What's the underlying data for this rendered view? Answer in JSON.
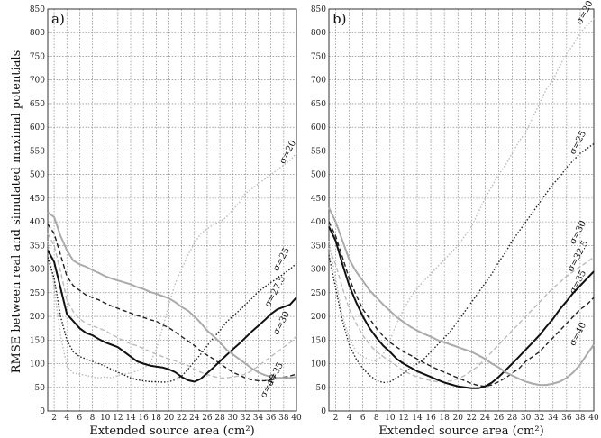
{
  "ylabel": "RMSE between real and simulated maximal potentials",
  "chart_data": [
    {
      "type": "line",
      "panel_label": "a)",
      "xlabel": "Extended source area (cm²)",
      "xlim": [
        1,
        40
      ],
      "ylim": [
        0,
        850
      ],
      "x_ticks": [
        2,
        4,
        6,
        8,
        10,
        12,
        14,
        16,
        18,
        20,
        22,
        24,
        26,
        28,
        30,
        32,
        34,
        36,
        38,
        40
      ],
      "y_ticks": [
        0,
        50,
        100,
        150,
        200,
        250,
        300,
        350,
        400,
        450,
        500,
        550,
        600,
        650,
        700,
        750,
        800,
        850
      ],
      "grid": true,
      "x": [
        1,
        2,
        3,
        4,
        5,
        6,
        7,
        8,
        9,
        10,
        11,
        12,
        13,
        14,
        15,
        16,
        17,
        18,
        19,
        20,
        21,
        22,
        23,
        24,
        25,
        26,
        27,
        28,
        29,
        30,
        31,
        32,
        33,
        34,
        35,
        36,
        37,
        38,
        39,
        40
      ],
      "series": [
        {
          "name": "σ=20",
          "color": "#bbbbbb",
          "dash": "1.5 2",
          "width": 1.4,
          "values": [
            360,
            260,
            160,
            95,
            80,
            78,
            75,
            72,
            70,
            72,
            70,
            75,
            78,
            80,
            85,
            90,
            100,
            130,
            175,
            225,
            270,
            300,
            330,
            355,
            375,
            385,
            395,
            400,
            410,
            425,
            440,
            460,
            470,
            480,
            490,
            500,
            510,
            520,
            530,
            545
          ]
        },
        {
          "name": "σ=25",
          "color": "#222222",
          "dash": "1.5 2",
          "width": 1.4,
          "values": [
            325,
            280,
            200,
            150,
            125,
            115,
            110,
            105,
            100,
            95,
            88,
            82,
            76,
            70,
            66,
            64,
            62,
            62,
            61,
            62,
            66,
            74,
            88,
            105,
            120,
            138,
            155,
            170,
            188,
            200,
            212,
            225,
            238,
            252,
            262,
            272,
            280,
            290,
            300,
            312
          ]
        },
        {
          "name": "σ=27.5",
          "color": "#222222",
          "dash": "5 3",
          "width": 1.4,
          "values": [
            395,
            375,
            330,
            285,
            265,
            255,
            245,
            240,
            235,
            228,
            222,
            217,
            212,
            207,
            202,
            198,
            193,
            190,
            182,
            176,
            167,
            157,
            148,
            138,
            127,
            118,
            110,
            100,
            91,
            82,
            76,
            70,
            66,
            64,
            64,
            66,
            68,
            71,
            74,
            78
          ]
        },
        {
          "name": "σ=30",
          "color": "#bbbbbb",
          "dash": "5 3",
          "width": 1.4,
          "values": [
            375,
            350,
            295,
            235,
            210,
            195,
            185,
            180,
            175,
            170,
            162,
            155,
            148,
            142,
            138,
            132,
            126,
            120,
            115,
            110,
            106,
            100,
            96,
            88,
            82,
            77,
            73,
            70,
            70,
            72,
            74,
            78,
            85,
            95,
            105,
            115,
            125,
            135,
            145,
            158
          ]
        },
        {
          "name": "σ=35",
          "color": "#111111",
          "dash": "",
          "width": 2.0,
          "values": [
            340,
            315,
            260,
            205,
            190,
            175,
            165,
            160,
            152,
            145,
            140,
            135,
            125,
            115,
            105,
            100,
            96,
            94,
            92,
            88,
            82,
            72,
            65,
            62,
            68,
            80,
            92,
            105,
            118,
            130,
            142,
            155,
            168,
            180,
            192,
            205,
            215,
            220,
            225,
            240
          ]
        },
        {
          "name": "σ=40",
          "color": "#aaaaaa",
          "dash": "",
          "width": 2.0,
          "values": [
            420,
            410,
            370,
            340,
            318,
            310,
            305,
            298,
            292,
            285,
            280,
            276,
            272,
            268,
            262,
            258,
            252,
            248,
            243,
            238,
            230,
            220,
            212,
            200,
            186,
            170,
            158,
            145,
            130,
            120,
            110,
            100,
            90,
            82,
            76,
            72,
            70,
            70,
            70,
            72
          ]
        }
      ],
      "curve_labels": [
        {
          "text": "σ=20",
          "at_x": 39,
          "at_y": 545
        },
        {
          "text": "σ=25",
          "at_x": 38,
          "at_y": 318
        },
        {
          "text": "σ=27.5",
          "at_x": 37,
          "at_y": 250
        },
        {
          "text": "σ=30",
          "at_x": 38,
          "at_y": 183
        },
        {
          "text": "σ=35",
          "at_x": 37,
          "at_y": 75
        },
        {
          "text": "σ=40",
          "at_x": 36,
          "at_y": 50
        }
      ]
    },
    {
      "type": "line",
      "panel_label": "b)",
      "xlabel": "Extended source area (cm²)",
      "xlim": [
        1,
        40
      ],
      "ylim": [
        0,
        850
      ],
      "x_ticks": [
        2,
        4,
        6,
        8,
        10,
        12,
        14,
        16,
        18,
        20,
        22,
        24,
        26,
        28,
        30,
        32,
        34,
        36,
        38,
        40
      ],
      "y_ticks": [
        0,
        50,
        100,
        150,
        200,
        250,
        300,
        350,
        400,
        450,
        500,
        550,
        600,
        650,
        700,
        750,
        800,
        850
      ],
      "grid": true,
      "x": [
        1,
        2,
        3,
        4,
        5,
        6,
        7,
        8,
        9,
        10,
        11,
        12,
        13,
        14,
        15,
        16,
        17,
        18,
        19,
        20,
        21,
        22,
        23,
        24,
        25,
        26,
        27,
        28,
        29,
        30,
        31,
        32,
        33,
        34,
        35,
        36,
        37,
        38,
        39,
        40
      ],
      "series": [
        {
          "name": "σ=20",
          "color": "#bbbbbb",
          "dash": "1.5 2",
          "width": 1.4,
          "values": [
            360,
            280,
            200,
            155,
            125,
            115,
            108,
            105,
            120,
            150,
            185,
            215,
            240,
            260,
            275,
            290,
            305,
            320,
            335,
            350,
            370,
            390,
            420,
            450,
            475,
            500,
            520,
            545,
            570,
            590,
            620,
            650,
            680,
            700,
            730,
            755,
            775,
            800,
            815,
            830
          ]
        },
        {
          "name": "σ=25",
          "color": "#222222",
          "dash": "1.5 2",
          "width": 1.4,
          "values": [
            330,
            260,
            190,
            140,
            110,
            90,
            75,
            65,
            60,
            62,
            70,
            80,
            90,
            100,
            110,
            125,
            140,
            155,
            170,
            190,
            210,
            230,
            250,
            270,
            290,
            315,
            335,
            360,
            380,
            400,
            420,
            440,
            460,
            480,
            495,
            515,
            530,
            545,
            555,
            565
          ]
        },
        {
          "name": "σ=30",
          "color": "#bbbbbb",
          "dash": "5 3",
          "width": 1.4,
          "values": [
            345,
            310,
            260,
            215,
            185,
            160,
            140,
            125,
            115,
            105,
            95,
            85,
            78,
            72,
            68,
            64,
            62,
            62,
            64,
            68,
            75,
            85,
            95,
            110,
            125,
            140,
            155,
            170,
            185,
            200,
            215,
            230,
            245,
            260,
            272,
            285,
            295,
            305,
            315,
            325
          ]
        },
        {
          "name": "σ=32.5",
          "color": "#222222",
          "dash": "5 3",
          "width": 1.4,
          "values": [
            400,
            370,
            325,
            280,
            245,
            215,
            195,
            175,
            158,
            145,
            135,
            125,
            118,
            110,
            102,
            95,
            88,
            82,
            76,
            70,
            64,
            58,
            54,
            52,
            55,
            62,
            70,
            80,
            90,
            105,
            115,
            125,
            140,
            155,
            170,
            185,
            200,
            215,
            225,
            240
          ]
        },
        {
          "name": "σ=35",
          "color": "#111111",
          "dash": "",
          "width": 2.0,
          "values": [
            390,
            360,
            310,
            265,
            230,
            200,
            175,
            155,
            138,
            125,
            110,
            100,
            92,
            84,
            78,
            72,
            66,
            60,
            56,
            52,
            50,
            48,
            48,
            52,
            60,
            72,
            86,
            100,
            115,
            130,
            145,
            160,
            178,
            195,
            215,
            232,
            250,
            265,
            280,
            295
          ]
        },
        {
          "name": "σ=40",
          "color": "#aaaaaa",
          "dash": "",
          "width": 2.0,
          "values": [
            430,
            400,
            360,
            320,
            295,
            275,
            255,
            240,
            225,
            212,
            198,
            188,
            178,
            170,
            163,
            157,
            150,
            145,
            140,
            135,
            130,
            125,
            118,
            110,
            100,
            92,
            82,
            75,
            68,
            62,
            58,
            55,
            55,
            58,
            62,
            70,
            82,
            98,
            120,
            140
          ]
        }
      ],
      "curve_labels": [
        {
          "text": "σ=20",
          "at_x": 39,
          "at_y": 840
        },
        {
          "text": "σ=25",
          "at_x": 38,
          "at_y": 565
        },
        {
          "text": "σ=30",
          "at_x": 38,
          "at_y": 375
        },
        {
          "text": "σ=32.5",
          "at_x": 38,
          "at_y": 325
        },
        {
          "text": "σ=35",
          "at_x": 38,
          "at_y": 270
        },
        {
          "text": "σ=40",
          "at_x": 38,
          "at_y": 160
        }
      ]
    }
  ]
}
